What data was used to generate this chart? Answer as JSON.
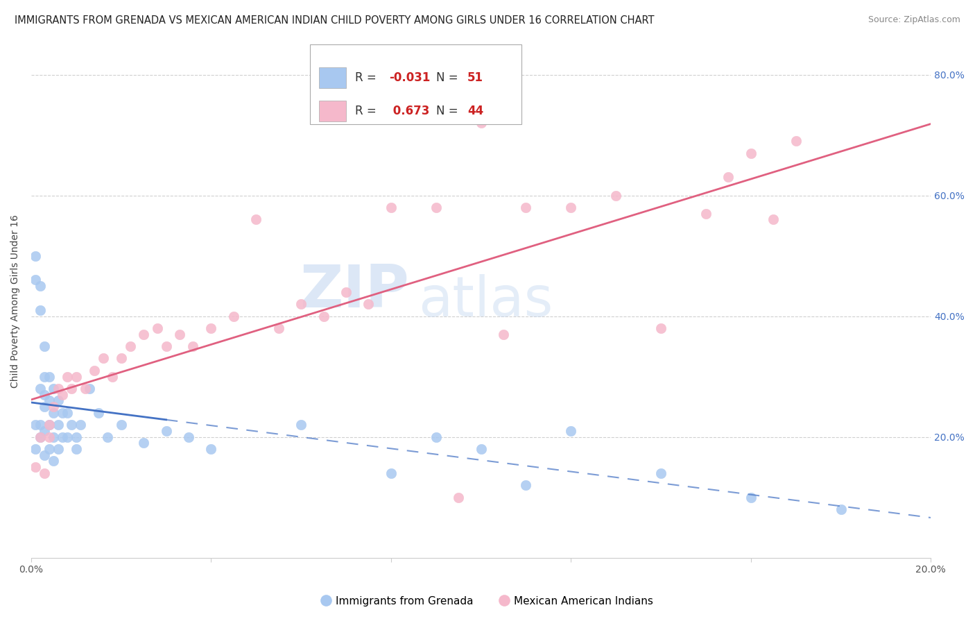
{
  "title": "IMMIGRANTS FROM GRENADA VS MEXICAN AMERICAN INDIAN CHILD POVERTY AMONG GIRLS UNDER 16 CORRELATION CHART",
  "source": "Source: ZipAtlas.com",
  "ylabel": "Child Poverty Among Girls Under 16",
  "xlim": [
    0.0,
    0.2
  ],
  "ylim": [
    0.0,
    0.85
  ],
  "xtick_values": [
    0.0,
    0.04,
    0.08,
    0.12,
    0.16,
    0.2
  ],
  "xtick_labels": [
    "0.0%",
    "",
    "",
    "",
    "",
    "20.0%"
  ],
  "ytick_values": [
    0.2,
    0.4,
    0.6,
    0.8
  ],
  "ytick_labels": [
    "20.0%",
    "40.0%",
    "60.0%",
    "80.0%"
  ],
  "watermark_zip": "ZIP",
  "watermark_atlas": "atlas",
  "series1_label": "Immigrants from Grenada",
  "series1_color": "#a8c8f0",
  "series1_R": "-0.031",
  "series1_N": "51",
  "series2_label": "Mexican American Indians",
  "series2_color": "#f5b8cb",
  "series2_R": "0.673",
  "series2_N": "44",
  "series1_x": [
    0.001,
    0.001,
    0.001,
    0.001,
    0.002,
    0.002,
    0.002,
    0.002,
    0.002,
    0.003,
    0.003,
    0.003,
    0.003,
    0.003,
    0.003,
    0.004,
    0.004,
    0.004,
    0.004,
    0.005,
    0.005,
    0.005,
    0.005,
    0.006,
    0.006,
    0.006,
    0.007,
    0.007,
    0.008,
    0.008,
    0.009,
    0.01,
    0.01,
    0.011,
    0.013,
    0.015,
    0.017,
    0.02,
    0.025,
    0.03,
    0.035,
    0.04,
    0.06,
    0.08,
    0.09,
    0.1,
    0.11,
    0.12,
    0.14,
    0.16,
    0.18
  ],
  "series1_y": [
    0.5,
    0.46,
    0.22,
    0.18,
    0.45,
    0.41,
    0.28,
    0.22,
    0.2,
    0.35,
    0.3,
    0.27,
    0.25,
    0.21,
    0.17,
    0.3,
    0.26,
    0.22,
    0.18,
    0.28,
    0.24,
    0.2,
    0.16,
    0.26,
    0.22,
    0.18,
    0.24,
    0.2,
    0.24,
    0.2,
    0.22,
    0.2,
    0.18,
    0.22,
    0.28,
    0.24,
    0.2,
    0.22,
    0.19,
    0.21,
    0.2,
    0.18,
    0.22,
    0.14,
    0.2,
    0.18,
    0.12,
    0.21,
    0.14,
    0.1,
    0.08
  ],
  "series2_x": [
    0.001,
    0.002,
    0.003,
    0.004,
    0.004,
    0.005,
    0.006,
    0.007,
    0.008,
    0.009,
    0.01,
    0.012,
    0.014,
    0.016,
    0.018,
    0.02,
    0.022,
    0.025,
    0.028,
    0.03,
    0.033,
    0.036,
    0.04,
    0.045,
    0.05,
    0.055,
    0.06,
    0.065,
    0.07,
    0.075,
    0.08,
    0.09,
    0.095,
    0.1,
    0.105,
    0.11,
    0.12,
    0.13,
    0.14,
    0.15,
    0.155,
    0.16,
    0.165,
    0.17
  ],
  "series2_y": [
    0.15,
    0.2,
    0.14,
    0.22,
    0.2,
    0.25,
    0.28,
    0.27,
    0.3,
    0.28,
    0.3,
    0.28,
    0.31,
    0.33,
    0.3,
    0.33,
    0.35,
    0.37,
    0.38,
    0.35,
    0.37,
    0.35,
    0.38,
    0.4,
    0.56,
    0.38,
    0.42,
    0.4,
    0.44,
    0.42,
    0.58,
    0.58,
    0.1,
    0.72,
    0.37,
    0.58,
    0.58,
    0.6,
    0.38,
    0.57,
    0.63,
    0.67,
    0.56,
    0.69
  ],
  "background_color": "#ffffff",
  "grid_color": "#d0d0d0",
  "title_fontsize": 10.5,
  "axis_label_fontsize": 10,
  "tick_fontsize": 10,
  "right_ytick_color": "#4472c4",
  "series1_line_color": "#4472c4",
  "series2_line_color": "#e06080",
  "series1_line_solid_end": 0.03,
  "series2_line_intercept": 0.1,
  "series2_line_slope": 3.2
}
